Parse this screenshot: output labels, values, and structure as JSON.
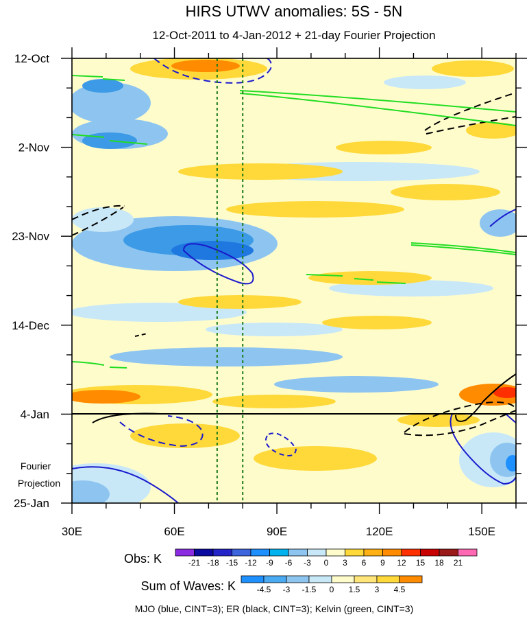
{
  "chart_data": {
    "type": "heatmap",
    "title": "HIRS UTWV anomalies: 5S - 5N",
    "subtitle": "12-Oct-2011 to 4-Jan-2012 + 21-day Fourier Projection",
    "x_range": [
      30,
      160
    ],
    "x_ticks": [
      30,
      60,
      90,
      120,
      150
    ],
    "x_tick_labels": [
      "30E",
      "60E",
      "90E",
      "120E",
      "150E"
    ],
    "y_range_days": [
      0,
      105
    ],
    "y_ticks_days": [
      0,
      21,
      42,
      63,
      84,
      105
    ],
    "y_tick_labels": [
      "12-Oct",
      "2-Nov",
      "23-Nov",
      "14-Dec",
      "4-Jan",
      "25-Jan"
    ],
    "obs_end_day": 84,
    "fourier_label_lines": [
      "Fourier",
      "Projection"
    ],
    "reference_lines_lon": [
      72.5,
      80
    ],
    "obs_colorbar": {
      "label": "Obs: K",
      "levels": [
        "-21",
        "-18",
        "-15",
        "-12",
        "-9",
        "-6",
        "-3",
        "0",
        "3",
        "6",
        "9",
        "12",
        "15",
        "18",
        "21"
      ],
      "colors": [
        "#8a2be2",
        "#0a0aa0",
        "#2424c8",
        "#3c64dc",
        "#1e90ff",
        "#00b2ee",
        "#8ec5f0",
        "#c8e8f8",
        "#fffccc",
        "#ffd93a",
        "#ffb012",
        "#ff8c00",
        "#ff3000",
        "#c80000",
        "#9a1a1a",
        "#ff69b4"
      ]
    },
    "waves_colorbar": {
      "label": "Sum of Waves: K",
      "levels": [
        "-4.5",
        "-3",
        "-1.5",
        "0",
        "1.5",
        "3",
        "4.5"
      ],
      "colors": [
        "#1e90ff",
        "#4aaaf2",
        "#8ec5f0",
        "#c8e8f8",
        "#fffccc",
        "#ffe57a",
        "#ffd93a",
        "#ff8c00"
      ]
    },
    "legend_text": "MJO (blue, CINT=3); ER (black, CINT=3); Kelvin (green, CINT=3)"
  }
}
